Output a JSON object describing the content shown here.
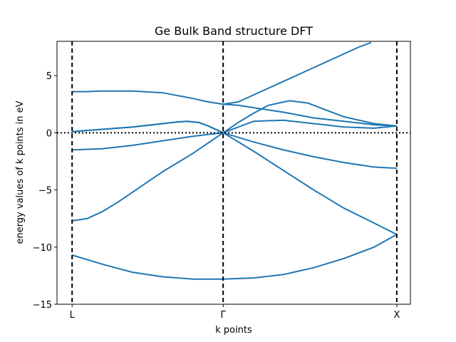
{
  "chart_data": {
    "type": "line",
    "title": "Ge Bulk Band structure DFT",
    "xlabel": "k points",
    "ylabel": "energy values of k points in eV",
    "ylim": [
      -15,
      8
    ],
    "xlim": [
      -0.05,
      1.12
    ],
    "x_ticks": [
      {
        "value": 0,
        "label": "L"
      },
      {
        "value": 0.5,
        "label": "Γ"
      },
      {
        "value": 1.075,
        "label": "X"
      }
    ],
    "y_ticks": [
      -15,
      -10,
      -5,
      0,
      5
    ],
    "grid": false,
    "legend": "none",
    "line_color": "#1f77b4",
    "vertical_lines": [
      0,
      0.5,
      1.075
    ],
    "horizontal_line": 0,
    "series": [
      {
        "points": [
          [
            0,
            -10.7
          ],
          [
            0.1,
            -11.5
          ],
          [
            0.2,
            -12.2
          ],
          [
            0.3,
            -12.6
          ],
          [
            0.4,
            -12.8
          ],
          [
            0.5,
            -12.8
          ],
          [
            0.6,
            -12.7
          ],
          [
            0.7,
            -12.4
          ],
          [
            0.8,
            -11.8
          ],
          [
            0.9,
            -11.0
          ],
          [
            1.0,
            -10.0
          ],
          [
            1.075,
            -8.9
          ]
        ]
      },
      {
        "points": [
          [
            0,
            -7.7
          ],
          [
            0.05,
            -7.5
          ],
          [
            0.1,
            -6.9
          ],
          [
            0.15,
            -6.1
          ],
          [
            0.2,
            -5.2
          ],
          [
            0.25,
            -4.3
          ],
          [
            0.3,
            -3.4
          ],
          [
            0.35,
            -2.6
          ],
          [
            0.4,
            -1.8
          ],
          [
            0.45,
            -0.9
          ],
          [
            0.5,
            0.0
          ],
          [
            0.6,
            -1.6
          ],
          [
            0.7,
            -3.3
          ],
          [
            0.8,
            -5.0
          ],
          [
            0.9,
            -6.6
          ],
          [
            1.0,
            -7.9
          ],
          [
            1.075,
            -8.9
          ]
        ]
      },
      {
        "points": [
          [
            0,
            -1.5
          ],
          [
            0.1,
            -1.4
          ],
          [
            0.2,
            -1.1
          ],
          [
            0.3,
            -0.7
          ],
          [
            0.4,
            -0.3
          ],
          [
            0.5,
            0.0
          ],
          [
            0.6,
            -0.8
          ],
          [
            0.7,
            -1.5
          ],
          [
            0.8,
            -2.1
          ],
          [
            0.9,
            -2.6
          ],
          [
            1.0,
            -3.0
          ],
          [
            1.075,
            -3.1
          ]
        ]
      },
      {
        "points": [
          [
            0,
            0.1
          ],
          [
            0.1,
            0.3
          ],
          [
            0.2,
            0.5
          ],
          [
            0.3,
            0.8
          ],
          [
            0.35,
            0.95
          ],
          [
            0.38,
            1.0
          ],
          [
            0.42,
            0.9
          ],
          [
            0.45,
            0.6
          ],
          [
            0.5,
            0.0
          ],
          [
            0.55,
            0.9
          ],
          [
            0.6,
            1.7
          ],
          [
            0.65,
            2.4
          ],
          [
            0.72,
            2.8
          ],
          [
            0.78,
            2.6
          ],
          [
            0.85,
            1.9
          ],
          [
            0.9,
            1.4
          ],
          [
            1.0,
            0.8
          ],
          [
            1.075,
            0.6
          ]
        ]
      },
      {
        "points": [
          [
            0,
            0.1
          ],
          [
            0.1,
            0.3
          ],
          [
            0.2,
            0.5
          ],
          [
            0.3,
            0.8
          ],
          [
            0.35,
            0.95
          ],
          [
            0.38,
            1.0
          ],
          [
            0.42,
            0.9
          ],
          [
            0.45,
            0.6
          ],
          [
            0.5,
            0.0
          ],
          [
            0.6,
            1.0
          ],
          [
            0.7,
            1.1
          ],
          [
            0.8,
            0.8
          ],
          [
            0.9,
            0.5
          ],
          [
            1.0,
            0.4
          ],
          [
            1.075,
            0.6
          ]
        ]
      },
      {
        "points": [
          [
            0,
            3.6
          ],
          [
            0.05,
            3.6
          ],
          [
            0.1,
            3.65
          ],
          [
            0.2,
            3.65
          ],
          [
            0.3,
            3.5
          ],
          [
            0.4,
            3.0
          ],
          [
            0.45,
            2.7
          ],
          [
            0.5,
            2.5
          ],
          [
            0.55,
            2.4
          ],
          [
            0.6,
            2.2
          ],
          [
            0.7,
            1.8
          ],
          [
            0.8,
            1.3
          ],
          [
            0.9,
            1.0
          ],
          [
            1.0,
            0.7
          ],
          [
            1.075,
            0.6
          ]
        ]
      },
      {
        "points": [
          [
            0.5,
            2.5
          ],
          [
            0.55,
            2.7
          ],
          [
            0.6,
            3.3
          ],
          [
            0.7,
            4.5
          ],
          [
            0.8,
            5.7
          ],
          [
            0.9,
            6.9
          ],
          [
            0.95,
            7.5
          ],
          [
            0.99,
            7.9
          ]
        ]
      }
    ]
  }
}
